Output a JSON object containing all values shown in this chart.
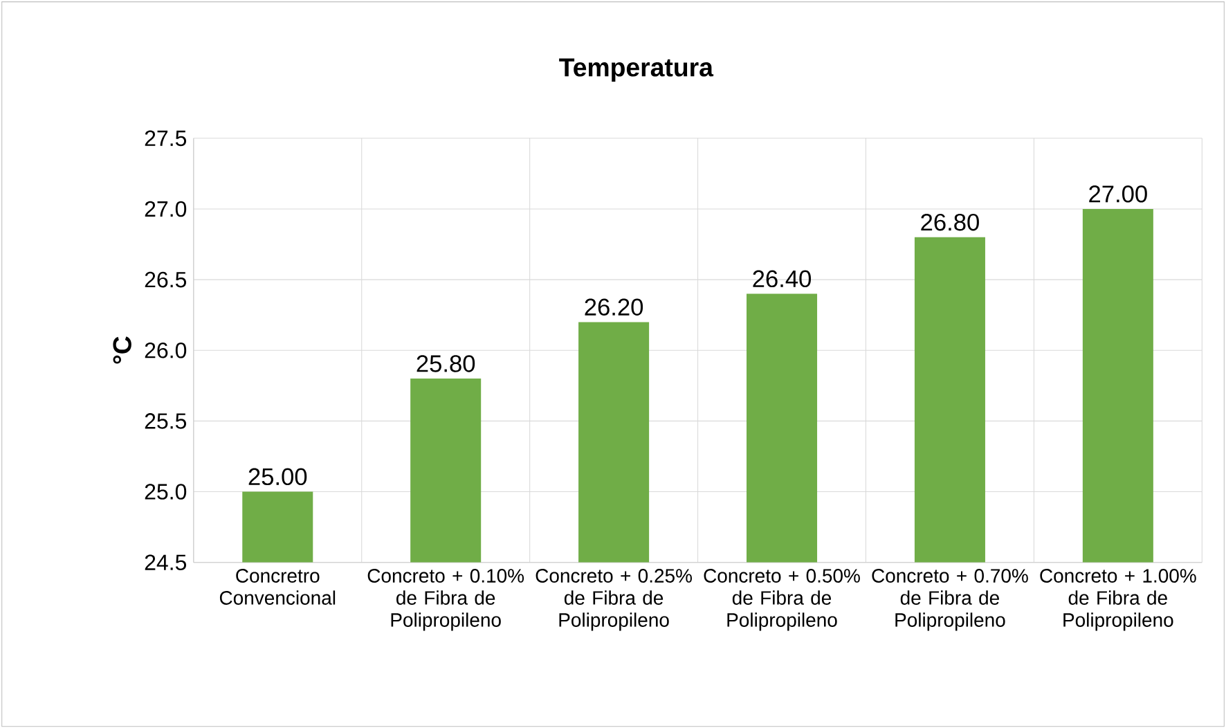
{
  "chart_data": {
    "type": "bar",
    "title": "Temperatura",
    "ylabel": "°C",
    "categories": [
      "Concretro Convencional",
      "Concreto + 0.10% de Fibra de Polipropileno",
      "Concreto + 0.25% de Fibra de Polipropileno",
      "Concreto + 0.50% de Fibra de Polipropileno",
      "Concreto + 0.70% de Fibra de Polipropileno",
      "Concreto + 1.00% de Fibra de Polipropileno"
    ],
    "values": [
      25.0,
      25.8,
      26.2,
      26.4,
      26.8,
      27.0
    ],
    "value_labels": [
      "25.00",
      "25.80",
      "26.20",
      "26.40",
      "26.80",
      "27.00"
    ],
    "color": "#70ad47",
    "ylim": [
      24.5,
      27.5
    ],
    "yticks": [
      24.5,
      {
        "value": 25,
        "label": "25.0"
      },
      25.5,
      {
        "value": 26,
        "label": "26.0"
      },
      26.5,
      {
        "value": 27,
        "label": "27.0"
      },
      27.5
    ],
    "grid": true
  }
}
